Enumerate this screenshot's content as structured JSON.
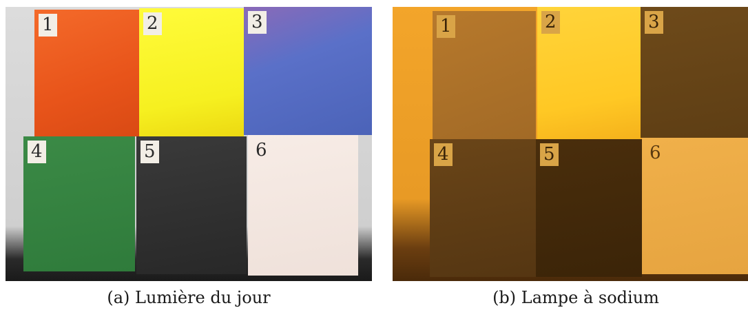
{
  "photos": [
    {
      "caption": "(a) Lumière du jour",
      "panels": [
        {
          "label": "1",
          "color": "#e8541a"
        },
        {
          "label": "2",
          "color": "#f6f020"
        },
        {
          "label": "3",
          "color": "#4b63b8"
        },
        {
          "label": "4",
          "color": "#2f7b3b"
        },
        {
          "label": "5",
          "color": "#282828"
        },
        {
          "label": "6",
          "color": "#efe1da"
        }
      ]
    },
    {
      "caption": "(b) Lampe à sodium",
      "panels": [
        {
          "label": "1",
          "color": "#a26a26"
        },
        {
          "label": "2",
          "color": "#ffc824"
        },
        {
          "label": "3",
          "color": "#5e3e14"
        },
        {
          "label": "4",
          "color": "#553612"
        },
        {
          "label": "5",
          "color": "#3b2408"
        },
        {
          "label": "6",
          "color": "#e6a440"
        }
      ]
    }
  ]
}
